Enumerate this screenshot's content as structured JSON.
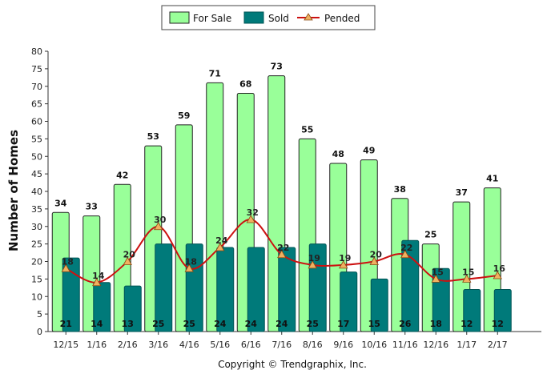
{
  "chart_data": {
    "type": "bar",
    "categories": [
      "12/15",
      "1/16",
      "2/16",
      "3/16",
      "4/16",
      "5/16",
      "6/16",
      "7/16",
      "8/16",
      "9/16",
      "10/16",
      "11/16",
      "12/16",
      "1/17",
      "2/17"
    ],
    "series": [
      {
        "name": "For Sale",
        "type": "bar",
        "color": "#99ff99",
        "stroke": "#222222",
        "values": [
          34,
          33,
          42,
          53,
          59,
          71,
          68,
          73,
          55,
          48,
          49,
          38,
          25,
          37,
          41
        ]
      },
      {
        "name": "Sold",
        "type": "bar",
        "color": "#007a7a",
        "stroke": "#005555",
        "values": [
          21,
          14,
          13,
          25,
          25,
          24,
          24,
          24,
          25,
          17,
          15,
          26,
          18,
          12,
          12
        ]
      },
      {
        "name": "Pended",
        "type": "line",
        "color": "#cc1111",
        "marker_color": "#f0b060",
        "values": [
          18,
          14,
          20,
          30,
          18,
          24,
          32,
          22,
          19,
          19,
          20,
          22,
          15,
          15,
          16
        ]
      }
    ],
    "ylabel": "Number of Homes",
    "ylim": [
      0,
      80
    ],
    "yticks": [
      0,
      5,
      10,
      15,
      20,
      25,
      30,
      35,
      40,
      45,
      50,
      55,
      60,
      65,
      70,
      75,
      80
    ],
    "grid": false,
    "legend": "top-center"
  },
  "footer": {
    "copyright": "Copyright © Trendgraphix, Inc."
  }
}
